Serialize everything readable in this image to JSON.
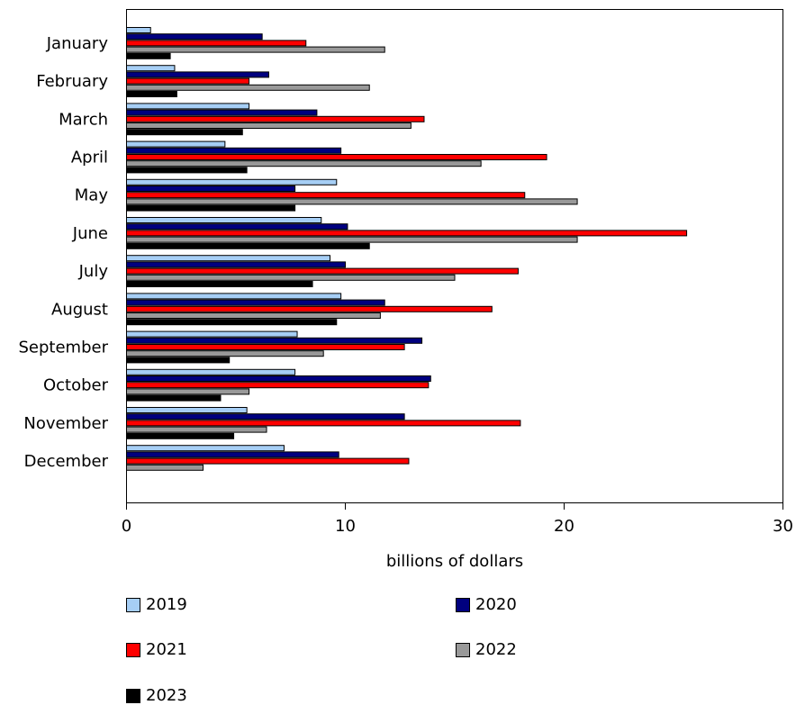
{
  "chart_data": {
    "type": "bar",
    "orientation": "horizontal",
    "categories": [
      "January",
      "February",
      "March",
      "April",
      "May",
      "June",
      "July",
      "August",
      "September",
      "October",
      "November",
      "December"
    ],
    "series": [
      {
        "name": "2019",
        "color": "#a6cef5",
        "values": [
          1.1,
          2.2,
          5.6,
          4.5,
          9.6,
          8.9,
          9.3,
          9.8,
          7.8,
          7.7,
          5.5,
          7.2
        ]
      },
      {
        "name": "2020",
        "color": "#00007f",
        "values": [
          6.2,
          6.5,
          8.7,
          9.8,
          7.7,
          10.1,
          10.0,
          11.8,
          13.5,
          13.9,
          12.7,
          9.7
        ]
      },
      {
        "name": "2021",
        "color": "#ff0000",
        "values": [
          8.2,
          5.6,
          13.6,
          19.2,
          18.2,
          25.6,
          17.9,
          16.7,
          12.7,
          13.8,
          18.0,
          12.9
        ]
      },
      {
        "name": "2022",
        "color": "#999999",
        "values": [
          11.8,
          11.1,
          13.0,
          16.2,
          20.6,
          20.6,
          15.0,
          11.6,
          9.0,
          5.6,
          6.4,
          3.5
        ]
      },
      {
        "name": "2023",
        "color": "#000000",
        "values": [
          2.0,
          2.3,
          5.3,
          5.5,
          7.7,
          11.1,
          8.5,
          9.6,
          4.7,
          4.3,
          4.9,
          null
        ]
      }
    ],
    "xlabel": "billions of dollars",
    "xlim": [
      0,
      30
    ],
    "xticks": [
      0,
      10,
      20,
      30
    ],
    "grid": false,
    "legend_position": "bottom"
  }
}
